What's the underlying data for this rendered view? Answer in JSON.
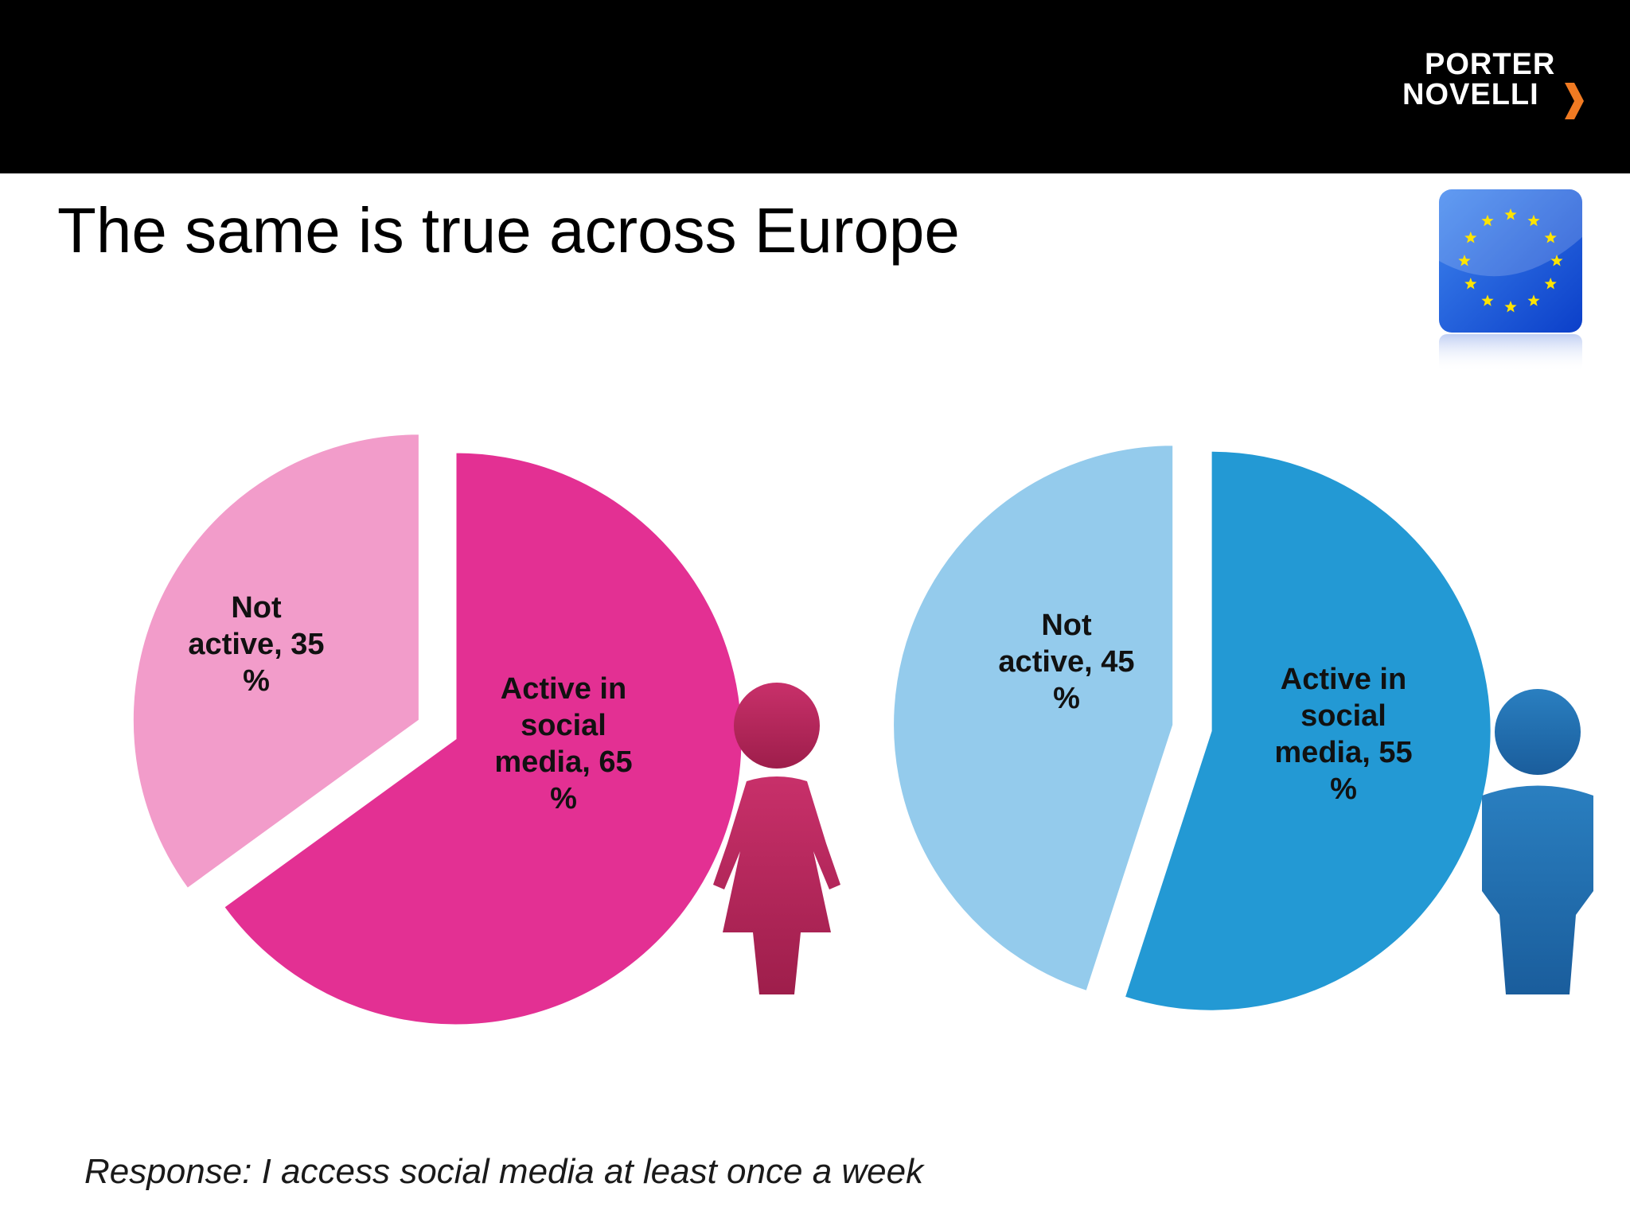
{
  "header": {
    "logo_line1": "PORTER",
    "logo_line2": "NOVELLI",
    "brand_color": "#000000",
    "accent_color": "#f07a22"
  },
  "slide": {
    "title": "The same is true across Europe",
    "footnote": "Response: I access social media at least once a week",
    "flag_icon": "eu-flag-icon"
  },
  "chart_data": [
    {
      "type": "pie",
      "categories": [
        "Not active",
        "Active in social media"
      ],
      "values": [
        35,
        65
      ],
      "slice_labels": [
        [
          "Not",
          "active, 35",
          "%"
        ],
        [
          "Active in",
          "social",
          "media, 65",
          "%"
        ]
      ],
      "colors": [
        "#f29cca",
        "#e33093"
      ],
      "icon": "female-figure-icon",
      "icon_color": "#c8306a"
    },
    {
      "type": "pie",
      "categories": [
        "Not active",
        "Active in social media"
      ],
      "values": [
        45,
        55
      ],
      "slice_labels": [
        [
          "Not",
          "active, 45",
          "%"
        ],
        [
          "Active in",
          "social",
          "media, 55",
          "%"
        ]
      ],
      "colors": [
        "#94cbec",
        "#2399d4"
      ],
      "icon": "male-figure-icon",
      "icon_color": "#2a7fc0"
    }
  ]
}
